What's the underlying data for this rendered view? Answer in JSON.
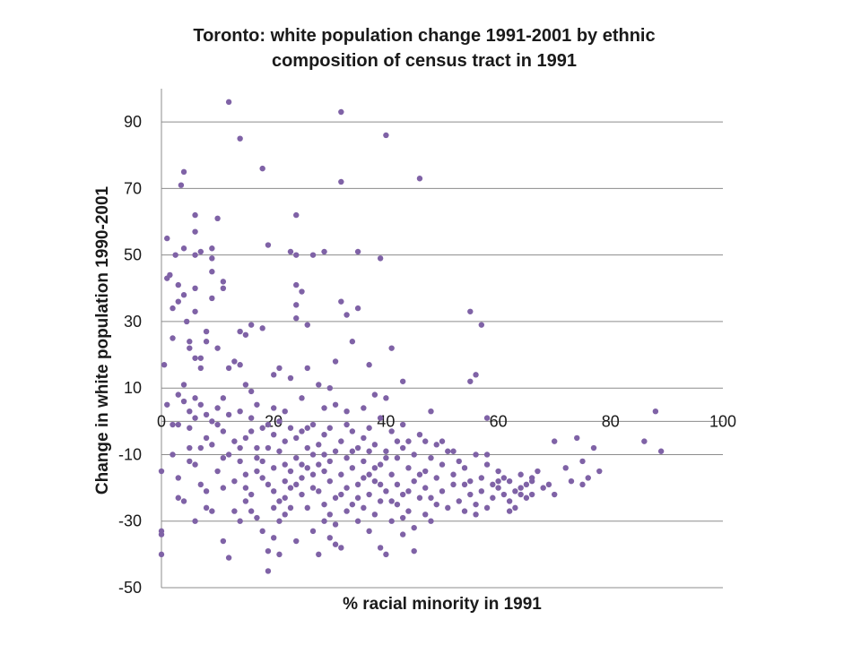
{
  "chart_data": {
    "type": "scatter",
    "title_line1": "Toronto: white population change 1991-2001  by ethnic",
    "title_line2": "composition of census tract in 1991",
    "xlabel": "% racial minority in 1991",
    "ylabel": "Change in white population 1990-2001",
    "xlim": [
      0,
      100
    ],
    "ylim": [
      -50,
      100
    ],
    "x_ticks": [
      0,
      20,
      40,
      60,
      80,
      100
    ],
    "y_ticks": [
      90,
      70,
      50,
      30,
      10,
      -10,
      -30,
      -50
    ],
    "grid": "horizontal",
    "legend": "none",
    "marker_color": "#7f62a6",
    "points": [
      [
        0,
        -40
      ],
      [
        0,
        -33
      ],
      [
        0,
        -34
      ],
      [
        0,
        -15
      ],
      [
        0.5,
        17
      ],
      [
        1,
        55
      ],
      [
        1,
        43
      ],
      [
        1,
        5
      ],
      [
        1.5,
        44
      ],
      [
        2,
        25
      ],
      [
        2,
        34
      ],
      [
        2,
        -10
      ],
      [
        2.5,
        50
      ],
      [
        3,
        41
      ],
      [
        3,
        36
      ],
      [
        3,
        -23
      ],
      [
        3,
        8
      ],
      [
        3,
        -1
      ],
      [
        3.5,
        71
      ],
      [
        4,
        75
      ],
      [
        4,
        52
      ],
      [
        4,
        38
      ],
      [
        4,
        -24
      ],
      [
        4,
        6
      ],
      [
        4.5,
        30
      ],
      [
        5,
        24
      ],
      [
        5,
        22
      ],
      [
        5,
        -12
      ],
      [
        5,
        3
      ],
      [
        5,
        -2
      ],
      [
        6,
        62
      ],
      [
        6,
        57
      ],
      [
        6,
        50
      ],
      [
        6,
        40
      ],
      [
        6,
        33
      ],
      [
        6,
        19
      ],
      [
        6,
        -30
      ],
      [
        6,
        -13
      ],
      [
        6,
        1
      ],
      [
        7,
        51
      ],
      [
        7,
        19
      ],
      [
        7,
        16
      ],
      [
        7,
        -8
      ],
      [
        7,
        5
      ],
      [
        8,
        24
      ],
      [
        8,
        27
      ],
      [
        8,
        -26
      ],
      [
        8,
        2
      ],
      [
        8,
        -5
      ],
      [
        9,
        52
      ],
      [
        9,
        49
      ],
      [
        9,
        45
      ],
      [
        9,
        37
      ],
      [
        9,
        -27
      ],
      [
        9,
        0
      ],
      [
        9,
        -7
      ],
      [
        10,
        61
      ],
      [
        10,
        22
      ],
      [
        10,
        -15
      ],
      [
        10,
        4
      ],
      [
        11,
        42
      ],
      [
        11,
        40
      ],
      [
        11,
        -36
      ],
      [
        11,
        -20
      ],
      [
        11,
        -3
      ],
      [
        11,
        7
      ],
      [
        12,
        96
      ],
      [
        12,
        -41
      ],
      [
        12,
        16
      ],
      [
        12,
        -10
      ],
      [
        12,
        2
      ],
      [
        13,
        18
      ],
      [
        13,
        -6
      ],
      [
        13,
        -18
      ],
      [
        14,
        85
      ],
      [
        14,
        27
      ],
      [
        14,
        17
      ],
      [
        14,
        -30
      ],
      [
        14,
        -12
      ],
      [
        14,
        3
      ],
      [
        15,
        26
      ],
      [
        15,
        11
      ],
      [
        15,
        -24
      ],
      [
        15,
        -5
      ],
      [
        15,
        -16
      ],
      [
        16,
        29
      ],
      [
        16,
        9
      ],
      [
        16,
        -3
      ],
      [
        16,
        -22
      ],
      [
        16,
        1
      ],
      [
        17,
        -8
      ],
      [
        17,
        -15
      ],
      [
        17,
        -29
      ],
      [
        17,
        5
      ],
      [
        18,
        76
      ],
      [
        18,
        28
      ],
      [
        18,
        -33
      ],
      [
        18,
        -12
      ],
      [
        18,
        -2
      ],
      [
        19,
        53
      ],
      [
        19,
        -39
      ],
      [
        19,
        -45
      ],
      [
        19,
        -19
      ],
      [
        19,
        -8
      ],
      [
        20,
        14
      ],
      [
        20,
        4
      ],
      [
        20,
        -21
      ],
      [
        20,
        -14
      ],
      [
        20,
        -35
      ],
      [
        20,
        -4
      ],
      [
        21,
        16
      ],
      [
        21,
        -9
      ],
      [
        21,
        -24
      ],
      [
        21,
        -40
      ],
      [
        21,
        0
      ],
      [
        22,
        -13
      ],
      [
        22,
        -18
      ],
      [
        22,
        -28
      ],
      [
        22,
        -6
      ],
      [
        22,
        3
      ],
      [
        23,
        51
      ],
      [
        23,
        13
      ],
      [
        23,
        -15
      ],
      [
        23,
        -20
      ],
      [
        23,
        -2
      ],
      [
        24,
        62
      ],
      [
        24,
        41
      ],
      [
        24,
        35
      ],
      [
        24,
        31
      ],
      [
        24,
        50
      ],
      [
        24,
        -11
      ],
      [
        24,
        -19
      ],
      [
        24,
        -36
      ],
      [
        24,
        -5
      ],
      [
        25,
        39
      ],
      [
        25,
        7
      ],
      [
        25,
        -22
      ],
      [
        25,
        -17
      ],
      [
        25,
        -3
      ],
      [
        26,
        29
      ],
      [
        26,
        16
      ],
      [
        26,
        -8
      ],
      [
        26,
        -26
      ],
      [
        26,
        -14
      ],
      [
        27,
        50
      ],
      [
        27,
        -33
      ],
      [
        27,
        -10
      ],
      [
        27,
        -20
      ],
      [
        27,
        -1
      ],
      [
        28,
        11
      ],
      [
        28,
        -40
      ],
      [
        28,
        -21
      ],
      [
        28,
        -7
      ],
      [
        29,
        51
      ],
      [
        29,
        -15
      ],
      [
        29,
        -25
      ],
      [
        29,
        -30
      ],
      [
        29,
        -4
      ],
      [
        29,
        4
      ],
      [
        30,
        10
      ],
      [
        30,
        -12
      ],
      [
        30,
        -28
      ],
      [
        30,
        -18
      ],
      [
        30,
        -2
      ],
      [
        31,
        18
      ],
      [
        31,
        -37
      ],
      [
        31,
        -9
      ],
      [
        31,
        -23
      ],
      [
        31,
        5
      ],
      [
        32,
        93
      ],
      [
        32,
        72
      ],
      [
        32,
        36
      ],
      [
        32,
        -16
      ],
      [
        32,
        -38
      ],
      [
        32,
        -6
      ],
      [
        33,
        32
      ],
      [
        33,
        -20
      ],
      [
        33,
        -11
      ],
      [
        33,
        3
      ],
      [
        33,
        -27
      ],
      [
        34,
        24
      ],
      [
        34,
        -14
      ],
      [
        34,
        -25
      ],
      [
        34,
        -3
      ],
      [
        35,
        51
      ],
      [
        35,
        34
      ],
      [
        35,
        -19
      ],
      [
        35,
        -8
      ],
      [
        35,
        -30
      ],
      [
        36,
        -12
      ],
      [
        36,
        -26
      ],
      [
        36,
        -5
      ],
      [
        36,
        4
      ],
      [
        37,
        17
      ],
      [
        37,
        -16
      ],
      [
        37,
        -22
      ],
      [
        37,
        -33
      ],
      [
        37,
        -2
      ],
      [
        38,
        8
      ],
      [
        38,
        -18
      ],
      [
        38,
        -28
      ],
      [
        38,
        -7
      ],
      [
        39,
        49
      ],
      [
        39,
        -13
      ],
      [
        39,
        -38
      ],
      [
        39,
        -24
      ],
      [
        39,
        1
      ],
      [
        40,
        86
      ],
      [
        40,
        7
      ],
      [
        40,
        -40
      ],
      [
        40,
        -21
      ],
      [
        40,
        -9
      ],
      [
        41,
        22
      ],
      [
        41,
        -16
      ],
      [
        41,
        -30
      ],
      [
        41,
        -3
      ],
      [
        42,
        -11
      ],
      [
        42,
        -25
      ],
      [
        42,
        -19
      ],
      [
        43,
        12
      ],
      [
        43,
        -8
      ],
      [
        43,
        -34
      ],
      [
        43,
        -22
      ],
      [
        43,
        -1
      ],
      [
        44,
        -14
      ],
      [
        44,
        -27
      ],
      [
        44,
        -6
      ],
      [
        45,
        -39
      ],
      [
        45,
        -18
      ],
      [
        45,
        -10
      ],
      [
        46,
        73
      ],
      [
        46,
        -23
      ],
      [
        46,
        -4
      ],
      [
        47,
        -15
      ],
      [
        47,
        -28
      ],
      [
        47,
        -20
      ],
      [
        48,
        -11
      ],
      [
        48,
        -30
      ],
      [
        48,
        3
      ],
      [
        49,
        -17
      ],
      [
        49,
        -25
      ],
      [
        49,
        -7
      ],
      [
        50,
        -13
      ],
      [
        50,
        -21
      ],
      [
        51,
        -9
      ],
      [
        51,
        -26
      ],
      [
        52,
        -16
      ],
      [
        52,
        -19
      ],
      [
        53,
        -12
      ],
      [
        53,
        -24
      ],
      [
        54,
        -27
      ],
      [
        54,
        -14
      ],
      [
        55,
        33
      ],
      [
        55,
        12
      ],
      [
        55,
        -22
      ],
      [
        55,
        -18
      ],
      [
        56,
        14
      ],
      [
        56,
        -10
      ],
      [
        56,
        -25
      ],
      [
        57,
        29
      ],
      [
        57,
        -17
      ],
      [
        57,
        -21
      ],
      [
        58,
        1
      ],
      [
        58,
        -13
      ],
      [
        58,
        -26
      ],
      [
        59,
        -19
      ],
      [
        59,
        -23
      ],
      [
        60,
        -15
      ],
      [
        60,
        -20
      ],
      [
        61,
        -22
      ],
      [
        61,
        -17
      ],
      [
        62,
        -24
      ],
      [
        62,
        -18
      ],
      [
        63,
        -21
      ],
      [
        63,
        -26
      ],
      [
        64,
        -16
      ],
      [
        64,
        -20
      ],
      [
        65,
        -23
      ],
      [
        65,
        -19
      ],
      [
        66,
        -18
      ],
      [
        66,
        -22
      ],
      [
        67,
        -15
      ],
      [
        68,
        -20
      ],
      [
        69,
        -19
      ],
      [
        70,
        -6
      ],
      [
        70,
        -22
      ],
      [
        72,
        -14
      ],
      [
        73,
        -18
      ],
      [
        74,
        -5
      ],
      [
        75,
        -19
      ],
      [
        75,
        -12
      ],
      [
        76,
        -17
      ],
      [
        77,
        -8
      ],
      [
        78,
        -15
      ],
      [
        86,
        -6
      ],
      [
        88,
        3
      ],
      [
        89,
        -9
      ],
      [
        2,
        -1
      ],
      [
        4,
        11
      ],
      [
        6,
        7
      ],
      [
        7,
        -19
      ],
      [
        10,
        -1
      ],
      [
        13,
        -27
      ],
      [
        15,
        -20
      ],
      [
        17,
        -11
      ],
      [
        19,
        -1
      ],
      [
        21,
        -30
      ],
      [
        23,
        -26
      ],
      [
        25,
        -13
      ],
      [
        27,
        -16
      ],
      [
        29,
        -10
      ],
      [
        31,
        -31
      ],
      [
        33,
        -1
      ],
      [
        35,
        -23
      ],
      [
        37,
        -9
      ],
      [
        39,
        -19
      ],
      [
        41,
        -24
      ],
      [
        43,
        -29
      ],
      [
        45,
        -32
      ],
      [
        47,
        -6
      ],
      [
        3,
        -17
      ],
      [
        5,
        -8
      ],
      [
        8,
        -21
      ],
      [
        11,
        -11
      ],
      [
        14,
        -8
      ],
      [
        16,
        -27
      ],
      [
        18,
        -17
      ],
      [
        20,
        -26
      ],
      [
        22,
        -23
      ],
      [
        26,
        -2
      ],
      [
        28,
        -13
      ],
      [
        30,
        -35
      ],
      [
        32,
        -22
      ],
      [
        34,
        -9
      ],
      [
        36,
        -17
      ],
      [
        38,
        -14
      ],
      [
        40,
        -11
      ],
      [
        42,
        -6
      ],
      [
        44,
        -21
      ],
      [
        46,
        -16
      ],
      [
        48,
        -23
      ],
      [
        50,
        -6
      ],
      [
        52,
        -9
      ],
      [
        54,
        -19
      ],
      [
        56,
        -28
      ],
      [
        58,
        -10
      ],
      [
        60,
        -18
      ],
      [
        62,
        -27
      ],
      [
        64,
        -22
      ],
      [
        66,
        -17
      ]
    ]
  }
}
